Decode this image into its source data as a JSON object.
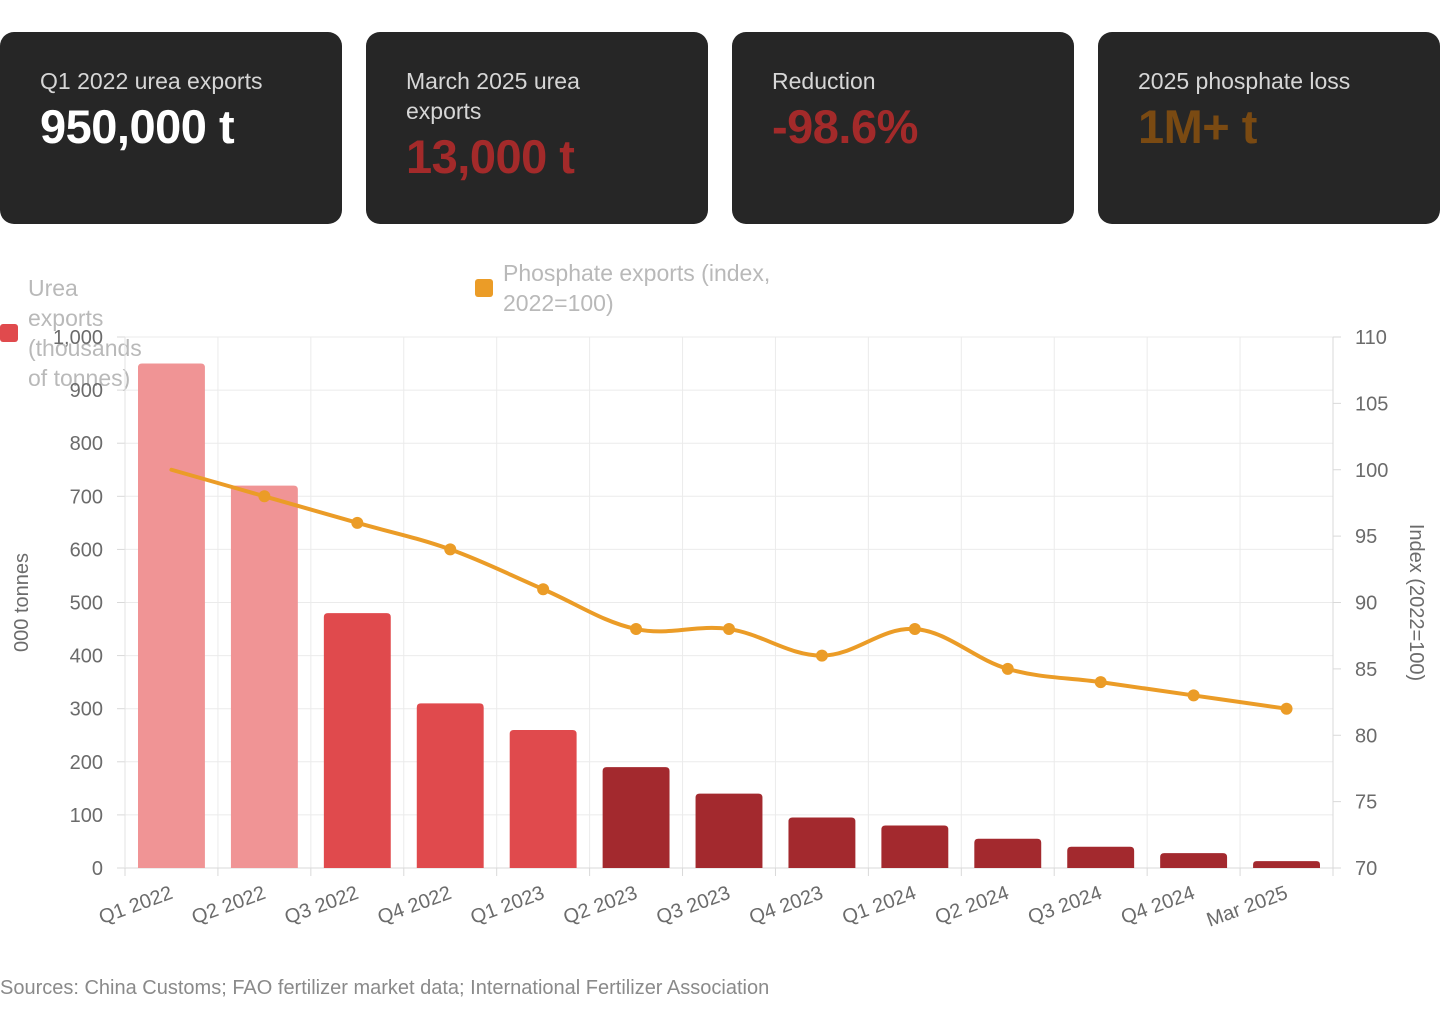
{
  "stats": [
    {
      "label": "Q1 2022 urea exports",
      "value": "950,000 t",
      "color": "#ffffff"
    },
    {
      "label": "March 2025 urea exports",
      "value": "13,000 t",
      "color": "#a32a2a"
    },
    {
      "label": "Reduction",
      "value": "-98.6%",
      "color": "#a32a2a"
    },
    {
      "label": "2025 phosphate loss",
      "value": "1M+ t",
      "color": "#7a4a12"
    }
  ],
  "legend": [
    {
      "label": "Urea exports (thousands of tonnes)",
      "color": "#e04a4d"
    },
    {
      "label": "Phosphate exports (index, 2022=100)",
      "color": "#eb9c27"
    }
  ],
  "chart_data": {
    "type": "bar",
    "categories": [
      "Q1 2022",
      "Q2 2022",
      "Q3 2022",
      "Q4 2022",
      "Q1 2023",
      "Q2 2023",
      "Q3 2023",
      "Q4 2023",
      "Q1 2024",
      "Q2 2024",
      "Q3 2024",
      "Q4 2024",
      "Mar 2025"
    ],
    "series": [
      {
        "name": "Urea exports (thousands of tonnes)",
        "type": "bar",
        "axis": "left",
        "values": [
          950,
          720,
          480,
          310,
          260,
          190,
          140,
          95,
          80,
          55,
          40,
          28,
          13
        ],
        "colors": [
          "#f09495",
          "#f09495",
          "#e04a4d",
          "#e04a4d",
          "#e04a4d",
          "#a3292e",
          "#a3292e",
          "#a3292e",
          "#a3292e",
          "#a3292e",
          "#a3292e",
          "#a3292e",
          "#a3292e"
        ]
      },
      {
        "name": "Phosphate exports (index, 2022=100)",
        "type": "line",
        "axis": "right",
        "color": "#eb9c27",
        "values": [
          100,
          98,
          96,
          94,
          91,
          88,
          88,
          86,
          88,
          85,
          84,
          83,
          82
        ]
      }
    ],
    "ylabel": "000 tonnes",
    "ylim": [
      0,
      1000
    ],
    "yticks": [
      "0",
      "100",
      "200",
      "300",
      "400",
      "500",
      "600",
      "700",
      "800",
      "900",
      "1,000"
    ],
    "y2label": "Index (2022=100)",
    "y2lim": [
      70,
      110
    ],
    "y2ticks": [
      "70",
      "75",
      "80",
      "85",
      "90",
      "95",
      "100",
      "105",
      "110"
    ],
    "grid": true,
    "legend_position": "top-left"
  },
  "source": "Sources: China Customs; FAO fertilizer market data; International Fertilizer Association"
}
